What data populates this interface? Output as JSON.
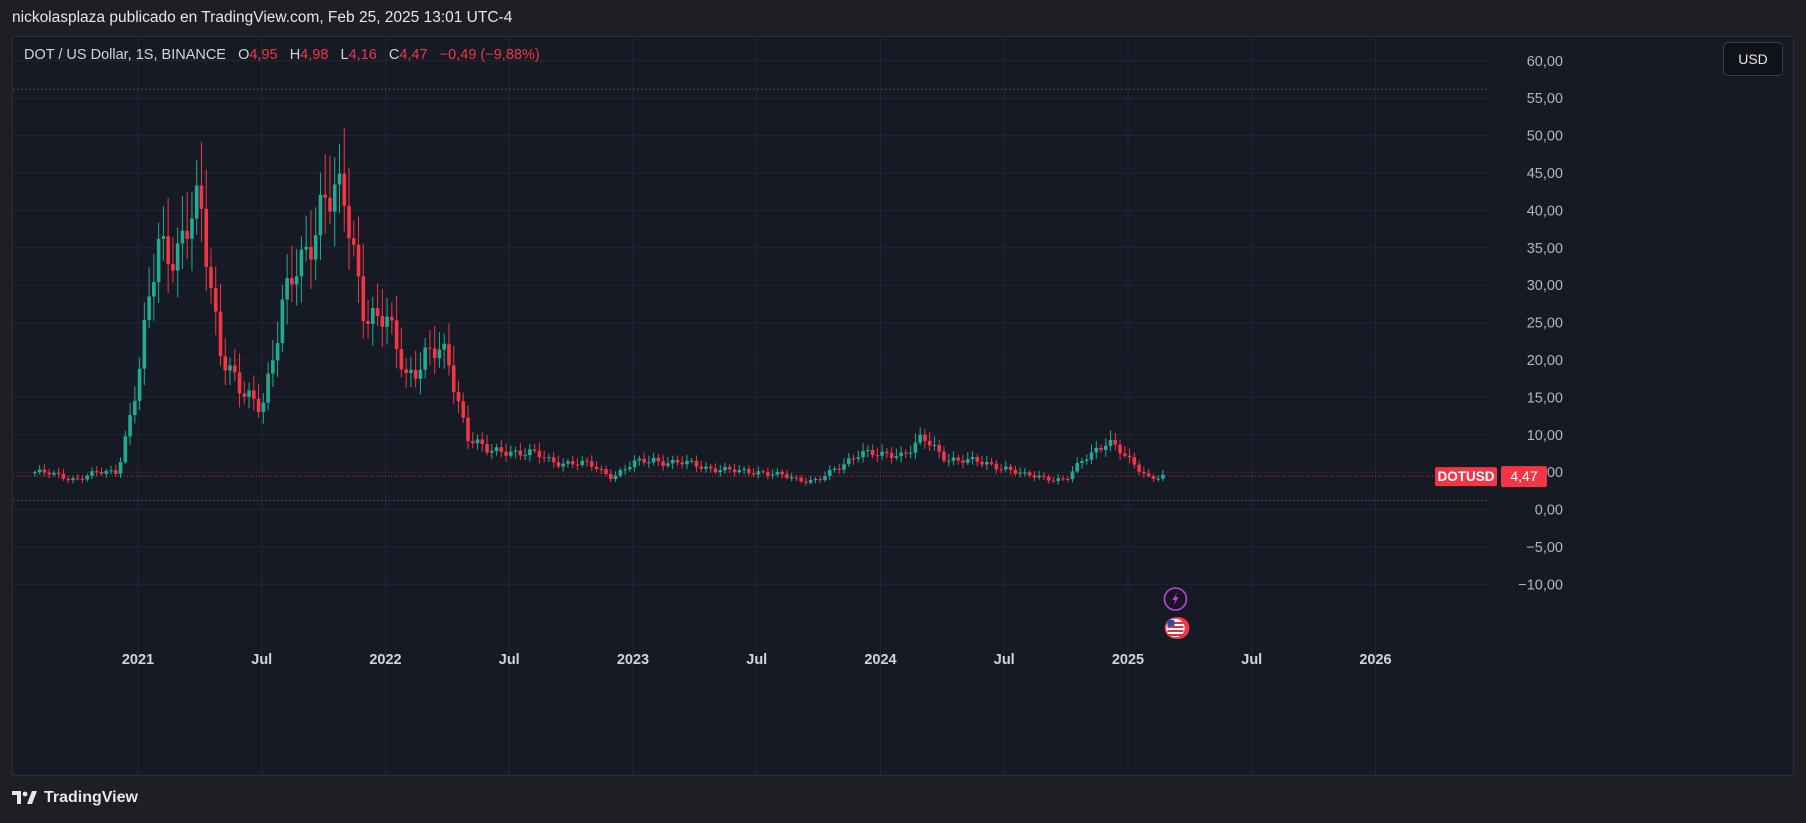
{
  "header": {
    "publisher_line": "nickolasplaza publicado en TradingView.com, Feb 25, 2025 13:01 UTC-4"
  },
  "legend": {
    "symbol": "DOT / US Dollar, 1S, BINANCE",
    "open_label": "O",
    "open_value": "4,95",
    "high_label": "H",
    "high_value": "4,98",
    "low_label": "L",
    "low_value": "4,16",
    "close_label": "C",
    "close_value": "4,47",
    "change": "−0,49 (−9,88%)"
  },
  "currency_button": "USD",
  "price_tag": {
    "symbol": "DOTUSD",
    "value": "4,47"
  },
  "footer": {
    "brand": "TradingView"
  },
  "colors": {
    "up": "#22ab94",
    "down": "#f23645",
    "background": "#161a25",
    "grid": "#222634"
  },
  "icons": [
    "lightning-icon",
    "us-flag-icon",
    "tradingview-logo-icon"
  ],
  "chart_data": {
    "type": "candlestick",
    "symbol": "DOTUSD",
    "exchange": "BINANCE",
    "interval": "1S",
    "y_ticks": [
      "60,00",
      "55,00",
      "50,00",
      "45,00",
      "40,00",
      "35,00",
      "30,00",
      "25,00",
      "20,00",
      "15,00",
      "10,00",
      "5,00",
      "0,00",
      "−5,00",
      "−10,00"
    ],
    "y_tick_values": [
      60,
      55,
      50,
      45,
      40,
      35,
      30,
      25,
      20,
      15,
      10,
      5,
      0,
      -5,
      -10
    ],
    "x_ticks": [
      "2021",
      "Jul",
      "2022",
      "Jul",
      "2023",
      "Jul",
      "2024",
      "Jul",
      "2025",
      "Jul",
      "2026"
    ],
    "ylim": [
      -13,
      66
    ],
    "high_line": 56.2,
    "low_line": 1.2,
    "last_price": 4.47,
    "grid": true,
    "series": [
      {
        "date": "2020-08",
        "close": 5.0
      },
      {
        "date": "2020-09",
        "close": 4.6
      },
      {
        "date": "2020-10",
        "close": 4.1
      },
      {
        "date": "2020-11",
        "close": 4.8
      },
      {
        "date": "2020-12",
        "close": 5.2
      },
      {
        "date": "2021-01",
        "close": 17.0
      },
      {
        "date": "2021-02",
        "close": 36.0
      },
      {
        "date": "2021-03",
        "close": 35.0
      },
      {
        "date": "2021-04",
        "close": 40.0
      },
      {
        "date": "2021-05",
        "close": 22.0
      },
      {
        "date": "2021-06",
        "close": 15.0
      },
      {
        "date": "2021-07",
        "close": 14.0
      },
      {
        "date": "2021-08",
        "close": 27.0
      },
      {
        "date": "2021-09",
        "close": 33.0
      },
      {
        "date": "2021-10",
        "close": 43.0
      },
      {
        "date": "2021-11",
        "close": 40.0
      },
      {
        "date": "2021-12",
        "close": 27.0
      },
      {
        "date": "2022-01",
        "close": 25.0
      },
      {
        "date": "2022-02",
        "close": 18.0
      },
      {
        "date": "2022-03",
        "close": 21.0
      },
      {
        "date": "2022-04",
        "close": 20.0
      },
      {
        "date": "2022-05",
        "close": 10.0
      },
      {
        "date": "2022-06",
        "close": 7.5
      },
      {
        "date": "2022-07",
        "close": 8.0
      },
      {
        "date": "2022-08",
        "close": 7.5
      },
      {
        "date": "2022-09",
        "close": 6.5
      },
      {
        "date": "2022-10",
        "close": 6.3
      },
      {
        "date": "2022-11",
        "close": 5.8
      },
      {
        "date": "2022-12",
        "close": 4.5
      },
      {
        "date": "2023-01",
        "close": 6.0
      },
      {
        "date": "2023-02",
        "close": 6.8
      },
      {
        "date": "2023-03",
        "close": 6.2
      },
      {
        "date": "2023-04",
        "close": 6.0
      },
      {
        "date": "2023-05",
        "close": 5.5
      },
      {
        "date": "2023-06",
        "close": 5.0
      },
      {
        "date": "2023-07",
        "close": 5.2
      },
      {
        "date": "2023-08",
        "close": 4.6
      },
      {
        "date": "2023-09",
        "close": 4.0
      },
      {
        "date": "2023-10",
        "close": 4.0
      },
      {
        "date": "2023-11",
        "close": 5.5
      },
      {
        "date": "2023-12",
        "close": 8.0
      },
      {
        "date": "2024-01",
        "close": 7.0
      },
      {
        "date": "2024-02",
        "close": 7.5
      },
      {
        "date": "2024-03",
        "close": 9.5
      },
      {
        "date": "2024-04",
        "close": 7.0
      },
      {
        "date": "2024-05",
        "close": 6.8
      },
      {
        "date": "2024-06",
        "close": 6.0
      },
      {
        "date": "2024-07",
        "close": 5.8
      },
      {
        "date": "2024-08",
        "close": 4.5
      },
      {
        "date": "2024-09",
        "close": 4.3
      },
      {
        "date": "2024-10",
        "close": 4.0
      },
      {
        "date": "2024-11",
        "close": 7.0
      },
      {
        "date": "2024-12",
        "close": 9.5
      },
      {
        "date": "2025-01",
        "close": 6.5
      },
      {
        "date": "2025-02",
        "close": 4.47
      }
    ]
  }
}
